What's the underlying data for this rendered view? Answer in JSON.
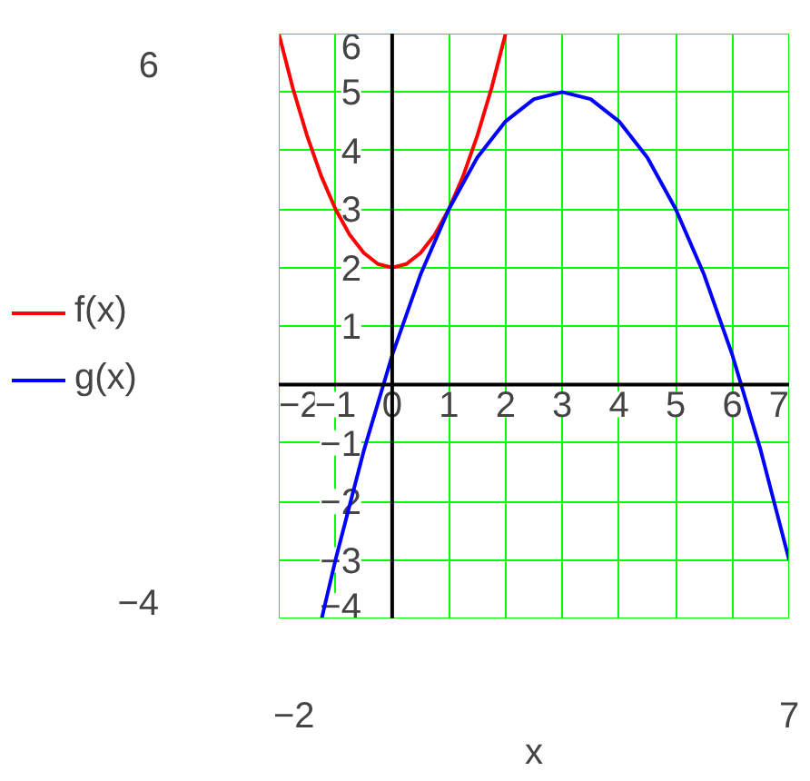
{
  "chart_data": {
    "type": "line",
    "xlabel": "x",
    "xlim": [
      -2,
      7
    ],
    "ylim": [
      -4,
      6
    ],
    "xticks": [
      -2,
      -1,
      0,
      1,
      2,
      3,
      4,
      5,
      6,
      7
    ],
    "yticks": [
      -4,
      -3,
      -2,
      -1,
      {
        "value": 0,
        "label": null
      },
      1,
      2,
      3,
      4,
      5,
      6
    ],
    "annotations": [
      "6",
      "−4",
      "−2",
      "7"
    ],
    "grid": true,
    "legend": "left",
    "marker": "none",
    "line_style": "solid",
    "series": [
      {
        "name": "f(x)",
        "color": "#ff0000",
        "x": [
          -2,
          -1.75,
          -1.5,
          -1.25,
          -1,
          -0.75,
          -0.5,
          -0.25,
          0,
          0.25,
          0.5,
          0.75,
          1,
          1.25,
          1.5,
          1.75,
          2
        ],
        "values": [
          6,
          5.06,
          4.25,
          3.56,
          3,
          2.56,
          2.25,
          2.06,
          2,
          2.06,
          2.25,
          2.56,
          3,
          3.56,
          4.25,
          5.06,
          6
        ]
      },
      {
        "name": "g(x)",
        "color": "#0000ff",
        "x": [
          -1.24,
          -1,
          -0.5,
          0,
          0.5,
          1,
          1.5,
          2,
          2.5,
          3,
          3.5,
          4,
          4.5,
          5,
          5.5,
          6,
          6.5,
          7
        ],
        "values": [
          -3.99,
          -3,
          -1.13,
          0.5,
          1.88,
          3,
          3.88,
          4.5,
          4.88,
          5,
          4.88,
          4.5,
          3.88,
          3,
          1.88,
          0.5,
          -1.13,
          -3
        ]
      }
    ]
  }
}
